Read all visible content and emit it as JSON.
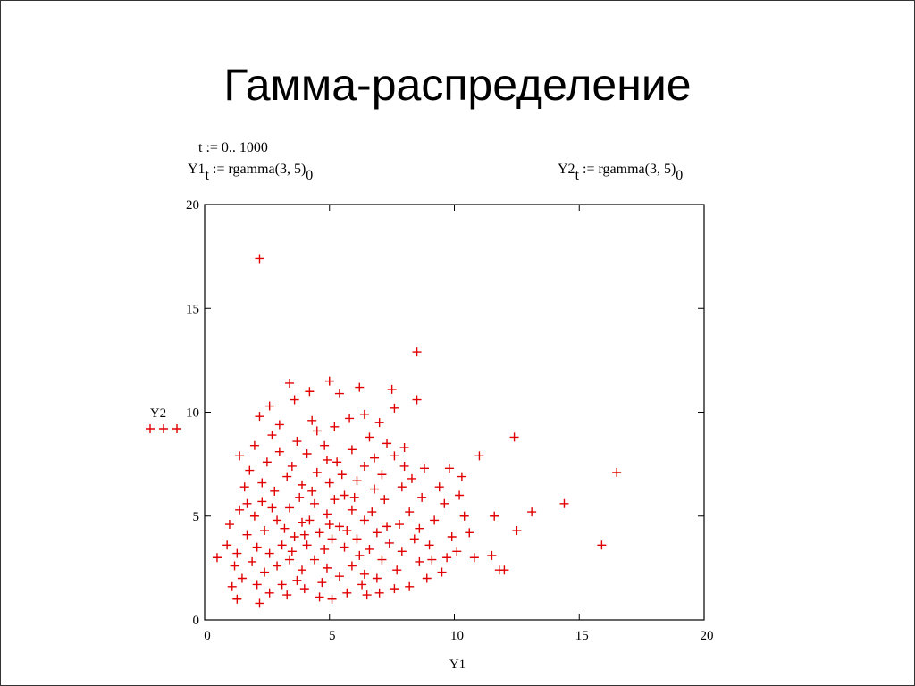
{
  "chart_data": {
    "type": "scatter",
    "title": "Гамма-распределение",
    "formulas": [
      [
        "t := 0.. 1000"
      ],
      [
        "Y1",
        "t",
        " := rgamma(3, 5)",
        "0"
      ],
      [
        "Y2",
        "t",
        " := rgamma(3, 5)",
        "0"
      ]
    ],
    "x_label": "Y1",
    "y_label": "Y2",
    "color": "#e00000",
    "marker": "+",
    "xlim": [
      0,
      20
    ],
    "ylim": [
      0,
      20
    ],
    "xticks": [
      0,
      5,
      10,
      15,
      20
    ],
    "yticks": [
      0,
      5,
      10,
      15,
      20
    ],
    "grid": false,
    "x": [
      2.2,
      8.5,
      16.5,
      15.9,
      14.4,
      13.1,
      12.4,
      12.5,
      11.6,
      11.0,
      0.5,
      8.5,
      5.0,
      12.0,
      11.8,
      11.5,
      10.8,
      1.3,
      2.2,
      4.6,
      6.5,
      3.4,
      3.6,
      4.2,
      5.4,
      6.2,
      7.5,
      7.6,
      2.6,
      2.2,
      3.0,
      4.3,
      5.2,
      6.4,
      7.0,
      8.0,
      8.8,
      9.8,
      10.3,
      10.2,
      9.6,
      9.2,
      9.9,
      10.1,
      9.1,
      8.9,
      8.2,
      7.6,
      7.0,
      6.3,
      5.7,
      5.1,
      4.0,
      3.3,
      2.6,
      2.1,
      1.5,
      1.1,
      1.2,
      0.9,
      1.0,
      1.4,
      1.6,
      1.8,
      1.4,
      2.0,
      2.5,
      3.0,
      3.5,
      4.1,
      4.8,
      5.3,
      5.9,
      6.4,
      7.1,
      7.6,
      8.3,
      8.7,
      8.2,
      7.8,
      7.2,
      6.8,
      6.1,
      5.6,
      5.0,
      4.5,
      3.9,
      3.3,
      2.8,
      2.3,
      2.0,
      2.4,
      2.9,
      3.4,
      3.9,
      4.4,
      4.9,
      5.4,
      5.9,
      6.4,
      6.9,
      7.4,
      7.9,
      8.4,
      8.6,
      7.7,
      7.1,
      6.6,
      6.1,
      5.6,
      5.1,
      4.6,
      4.1,
      3.6,
      3.1,
      2.6,
      2.1,
      1.7,
      1.9,
      2.4,
      2.9,
      3.4,
      3.9,
      4.4,
      4.9,
      5.4,
      5.9,
      6.4,
      6.9,
      4.7,
      3.7,
      3.1,
      4.2,
      4.8,
      5.2,
      3.8,
      6.0,
      6.7,
      7.3,
      5.7,
      4.3,
      3.2,
      2.7,
      5.5,
      6.6,
      4.5,
      3.7,
      2.7,
      7.9,
      8.0,
      9.4,
      9.0,
      6.2,
      5.0,
      4.0,
      3.5,
      2.3,
      1.7,
      1.3,
      5.8,
      7.3,
      8.6,
      9.5,
      10.4,
      10.6,
      9.7,
      4.9,
      6.8
    ],
    "values": [
      17.4,
      12.9,
      7.1,
      3.6,
      5.6,
      5.2,
      8.8,
      4.3,
      5.0,
      7.9,
      3.0,
      10.6,
      11.5,
      2.4,
      2.4,
      3.1,
      3.0,
      1.0,
      0.8,
      1.1,
      1.2,
      11.4,
      10.6,
      11.0,
      10.9,
      11.2,
      11.1,
      10.2,
      10.3,
      9.8,
      9.4,
      9.6,
      9.3,
      9.9,
      9.5,
      8.3,
      7.3,
      7.3,
      6.9,
      6.0,
      5.6,
      4.8,
      4.0,
      3.3,
      2.9,
      2.0,
      1.6,
      1.5,
      1.3,
      1.7,
      1.3,
      1.0,
      1.5,
      1.2,
      1.3,
      1.7,
      2.0,
      1.6,
      2.6,
      3.6,
      4.6,
      5.3,
      6.4,
      7.2,
      7.9,
      8.4,
      7.6,
      8.1,
      7.4,
      8.0,
      8.4,
      7.6,
      8.2,
      7.4,
      7.0,
      7.9,
      6.8,
      5.9,
      5.2,
      4.6,
      5.8,
      6.3,
      6.7,
      6.0,
      6.6,
      7.1,
      6.5,
      6.9,
      6.2,
      5.7,
      5.0,
      4.3,
      4.8,
      5.4,
      4.7,
      5.6,
      5.1,
      4.5,
      5.3,
      4.8,
      4.2,
      3.7,
      3.3,
      3.9,
      2.8,
      2.4,
      2.9,
      3.4,
      3.9,
      3.5,
      3.9,
      4.2,
      3.6,
      4.0,
      3.6,
      3.2,
      3.5,
      4.1,
      2.8,
      2.3,
      2.6,
      2.9,
      2.4,
      2.9,
      2.5,
      2.1,
      2.6,
      2.2,
      2.0,
      1.8,
      1.9,
      1.7,
      4.8,
      3.4,
      5.8,
      5.9,
      5.9,
      5.2,
      4.5,
      4.3,
      6.2,
      4.4,
      5.4,
      7.0,
      8.8,
      9.1,
      8.6,
      8.9,
      6.4,
      7.4,
      6.4,
      3.6,
      3.1,
      4.6,
      4.1,
      3.3,
      6.6,
      5.6,
      3.2,
      9.7,
      8.5,
      4.4,
      2.3,
      5.0,
      4.2,
      3.0,
      7.7,
      7.8
    ]
  }
}
